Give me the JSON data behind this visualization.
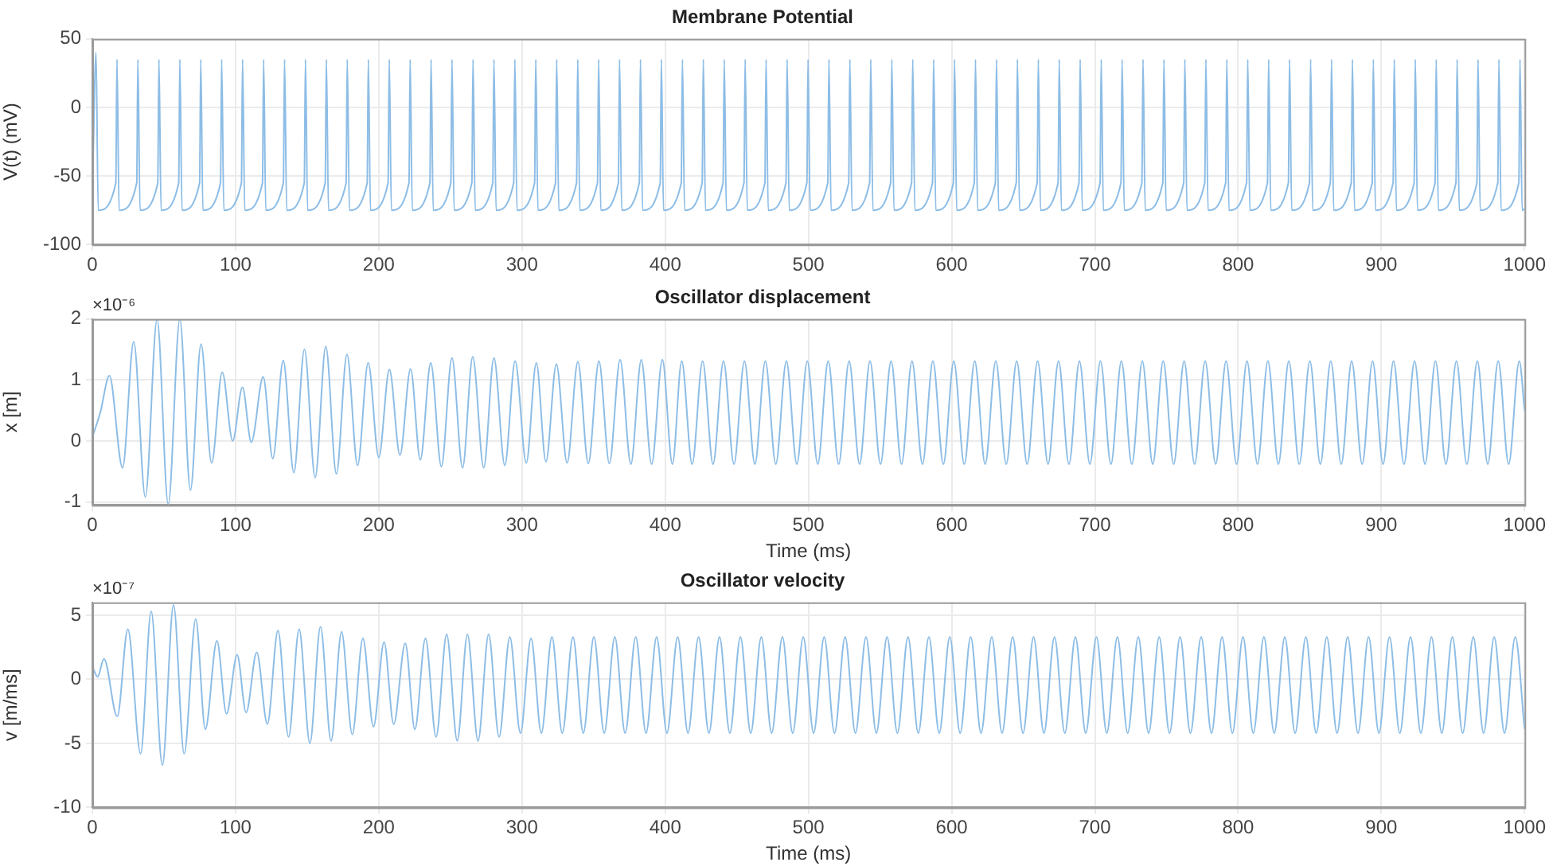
{
  "chart_data": [
    {
      "type": "line",
      "title": "Membrane Potential",
      "ylabel": "V(t) (mV)",
      "xlim": [
        0,
        1000
      ],
      "xticks": [
        0,
        100,
        200,
        300,
        400,
        500,
        600,
        700,
        800,
        900,
        1000
      ],
      "ylim": [
        -100,
        50
      ],
      "yticks": [
        -100,
        -50,
        0,
        50
      ],
      "grid": true,
      "series": [
        {
          "color": "#8dbde6",
          "x": [
            0,
            2.6,
            4.1,
            16.4,
            17.2,
            18.7,
            31.0,
            31.8,
            33.3,
            45.7,
            46.5,
            48.0,
            60.3,
            61.1,
            62.6,
            74.9,
            75.7,
            77.2,
            89.5,
            90.3,
            91.8,
            104.1,
            104.9,
            106.4,
            118.8,
            119.6,
            121.1,
            133.4,
            134.2,
            135.7,
            148.0,
            148.8,
            150.3,
            162.6,
            163.4,
            164.9,
            177.2,
            178.0,
            179.5,
            191.9,
            192.7,
            194.2,
            206.5,
            207.3,
            208.8,
            221.1,
            221.9,
            223.4,
            235.7,
            236.5,
            238.0,
            250.3,
            251.1,
            252.6,
            265.0,
            265.8,
            267.3,
            279.6,
            280.4,
            281.9,
            294.2,
            295.0,
            296.5,
            308.8,
            309.6,
            311.1,
            323.4,
            324.2,
            325.7,
            338.1,
            338.9,
            340.4,
            352.7,
            353.5,
            355.0,
            367.3,
            368.1,
            369.6,
            381.9,
            382.7,
            384.2,
            396.5,
            397.3,
            398.8,
            411.2,
            412.0,
            413.5,
            425.8,
            426.6,
            428.1,
            440.4,
            441.2,
            442.7,
            455.0,
            455.8,
            457.3,
            469.6,
            470.4,
            471.9,
            484.3,
            485.1,
            486.6,
            498.9,
            499.7,
            501.2,
            513.5,
            514.3,
            515.8,
            528.1,
            528.9,
            530.4,
            542.7,
            543.5,
            545.0,
            557.4,
            558.2,
            559.7,
            572.0,
            572.8,
            574.3,
            586.6,
            587.4,
            588.9,
            601.2,
            602.0,
            603.5,
            615.8,
            616.6,
            618.1,
            630.5,
            631.3,
            632.8,
            645.1,
            645.9,
            647.4,
            659.7,
            660.5,
            662.0,
            674.3,
            675.1,
            676.6,
            688.9,
            689.7,
            691.2,
            703.6,
            704.4,
            705.9,
            718.2,
            719.0,
            720.5,
            732.8,
            733.6,
            735.1,
            747.4,
            748.2,
            749.7,
            762.0,
            762.8,
            764.3,
            776.7,
            777.5,
            779.0,
            791.3,
            792.1,
            793.6,
            805.9,
            806.7,
            808.2,
            820.5,
            821.3,
            822.8,
            835.1,
            835.9,
            837.4,
            849.8,
            850.6,
            852.1,
            864.4,
            865.2,
            866.7,
            879.0,
            879.8,
            881.3,
            893.6,
            894.4,
            895.9,
            908.2,
            909.0,
            910.5,
            922.9,
            923.7,
            925.2,
            937.5,
            938.3,
            939.8,
            952.1,
            952.9,
            954.4,
            966.7,
            967.5,
            969.0,
            981.3,
            982.1,
            983.6,
            996.0,
            996.8,
            998.3,
            1000
          ],
          "values": [
            -65,
            40,
            -75,
            -55,
            35,
            -75,
            -55,
            35,
            -75,
            -55,
            35,
            -75,
            -55,
            35,
            -75,
            -55,
            35,
            -75,
            -55,
            35,
            -75,
            -55,
            35,
            -75,
            -55,
            35,
            -75,
            -55,
            35,
            -75,
            -55,
            35,
            -75,
            -55,
            35,
            -75,
            -55,
            35,
            -75,
            -55,
            35,
            -75,
            -55,
            35,
            -75,
            -55,
            35,
            -75,
            -55,
            35,
            -75,
            -55,
            35,
            -75,
            -55,
            35,
            -75,
            -55,
            35,
            -75,
            -55,
            35,
            -75,
            -55,
            35,
            -75,
            -55,
            35,
            -75,
            -55,
            35,
            -75,
            -55,
            35,
            -75,
            -55,
            35,
            -75,
            -55,
            35,
            -75,
            -55,
            35,
            -75,
            -55,
            35,
            -75,
            -55,
            35,
            -75,
            -55,
            35,
            -75,
            -55,
            35,
            -75,
            -55,
            35,
            -75,
            -55,
            35,
            -75,
            -55,
            35,
            -75,
            -55,
            35,
            -75,
            -55,
            35,
            -75,
            -55,
            35,
            -75,
            -55,
            35,
            -75,
            -55,
            35,
            -75,
            -55,
            35,
            -75,
            -55,
            35,
            -75,
            -55,
            35,
            -75,
            -55,
            35,
            -75,
            -55,
            35,
            -75,
            -55,
            35,
            -75,
            -55,
            35,
            -75,
            -55,
            35,
            -75,
            -55,
            35,
            -75,
            -55,
            35,
            -75,
            -55,
            35,
            -75,
            -55,
            35,
            -75,
            -55,
            35,
            -75,
            -55,
            35,
            -75,
            -55,
            35,
            -75,
            -55,
            35,
            -75,
            -55,
            35,
            -75,
            -55,
            35,
            -75,
            -55,
            35,
            -75,
            -55,
            35,
            -75,
            -55,
            35,
            -75,
            -55,
            35,
            -75,
            -55,
            35,
            -75,
            -55,
            35,
            -75,
            -55,
            35,
            -75,
            -55,
            35,
            -75,
            -55,
            35,
            -75,
            -55,
            35,
            -75,
            -55,
            35,
            -75,
            -74
          ]
        }
      ]
    },
    {
      "type": "line",
      "title": "Oscillator displacement",
      "xlabel": "Time (ms)",
      "ylabel": "x [m]",
      "annotations": [
        "×10⁻⁶"
      ],
      "xlim": [
        0,
        1000
      ],
      "xticks": [
        0,
        100,
        200,
        300,
        400,
        500,
        600,
        700,
        800,
        900,
        1000
      ],
      "ylim": [
        -1.05,
        2
      ],
      "yticks": [
        -1,
        0,
        1,
        2
      ],
      "grid": true,
      "series": [
        {
          "color": "#8dbde6",
          "x": [
            0,
            5.6,
            11.9,
            21.1,
            28.9,
            37,
            45.2,
            53,
            61.1,
            68.5,
            75.9,
            83.3,
            90.7,
            98,
            104.8,
            111,
            119.3,
            126,
            133.3,
            140.7,
            148.1,
            155.6,
            163,
            170.4,
            177.8,
            185.2,
            192.6,
            200,
            207.4,
            214.8,
            222.2,
            229,
            236.3,
            243.7,
            251.1,
            258.5,
            265.6,
            273.3,
            280.4,
            288,
            295.2,
            303,
            310,
            316.7,
            324,
            331.5,
            339,
            346.3,
            353.7,
            361,
            368.5,
            376,
            383.3,
            390.5,
            398,
            405,
            411.5,
            418.8,
            426.1,
            433.4,
            440.7,
            448.0,
            455.3,
            462.6,
            469.9,
            477.2,
            484.6,
            491.9,
            499.2,
            506.5,
            513.8,
            521.1,
            528.4,
            535.7,
            543.0,
            550.3,
            557.7,
            565.0,
            572.3,
            579.6,
            586.9,
            594.2,
            601.5,
            608.8,
            616.1,
            623.4,
            630.8,
            638.1,
            645.4,
            652.7,
            660.0,
            667.3,
            674.6,
            681.9,
            689.2,
            696.5,
            703.9,
            711.2,
            718.5,
            725.8,
            733.1,
            740.4,
            747.7,
            755.0,
            762.3,
            769.6,
            777.0,
            784.3,
            791.6,
            798.9,
            806.2,
            813.5,
            820.8,
            828.1,
            835.4,
            842.7,
            850.1,
            857.4,
            864.7,
            872.0,
            879.3,
            886.6,
            893.9,
            901.2,
            908.5,
            915.8,
            923.2,
            930.5,
            937.8,
            945.1,
            952.4,
            959.7,
            967.0,
            974.3,
            981.6,
            988.9,
            996.3,
            1000
          ],
          "values": [
            0.06,
            0.47,
            1.07,
            -0.44,
            1.63,
            -0.92,
            2.0,
            -1.04,
            2.0,
            -0.81,
            1.59,
            -0.36,
            1.13,
            0.0,
            0.88,
            -0.02,
            1.05,
            -0.29,
            1.32,
            -0.52,
            1.5,
            -0.6,
            1.55,
            -0.54,
            1.42,
            -0.4,
            1.28,
            -0.27,
            1.17,
            -0.23,
            1.18,
            -0.31,
            1.28,
            -0.42,
            1.36,
            -0.44,
            1.38,
            -0.44,
            1.36,
            -0.4,
            1.31,
            -0.36,
            1.28,
            -0.34,
            1.26,
            -0.36,
            1.3,
            -0.37,
            1.31,
            -0.37,
            1.33,
            -0.38,
            1.33,
            -0.38,
            1.33,
            -0.38,
            1.31,
            -0.38,
            1.31,
            -0.38,
            1.31,
            -0.38,
            1.31,
            -0.38,
            1.31,
            -0.38,
            1.31,
            -0.38,
            1.31,
            -0.38,
            1.31,
            -0.38,
            1.31,
            -0.38,
            1.31,
            -0.38,
            1.31,
            -0.38,
            1.31,
            -0.38,
            1.31,
            -0.38,
            1.31,
            -0.38,
            1.31,
            -0.38,
            1.31,
            -0.38,
            1.31,
            -0.38,
            1.31,
            -0.38,
            1.31,
            -0.38,
            1.31,
            -0.38,
            1.31,
            -0.38,
            1.31,
            -0.38,
            1.31,
            -0.38,
            1.31,
            -0.38,
            1.31,
            -0.38,
            1.31,
            -0.38,
            1.31,
            -0.38,
            1.31,
            -0.38,
            1.31,
            -0.38,
            1.31,
            -0.38,
            1.31,
            -0.38,
            1.31,
            -0.38,
            1.31,
            -0.38,
            1.31,
            -0.38,
            1.31,
            -0.38,
            1.31,
            -0.38,
            1.31,
            -0.38,
            1.31,
            -0.38,
            1.31,
            -0.38,
            1.31,
            -0.38,
            1.31,
            0.5
          ]
        }
      ]
    },
    {
      "type": "line",
      "title": "Oscillator velocity",
      "xlabel": "Time (ms)",
      "ylabel": "v [m/ms]",
      "annotations": [
        "×10⁻⁷"
      ],
      "xlim": [
        0,
        1000
      ],
      "xticks": [
        0,
        100,
        200,
        300,
        400,
        500,
        600,
        700,
        800,
        900,
        1000
      ],
      "ylim": [
        -10,
        6
      ],
      "yticks": [
        -10,
        -5,
        0,
        5
      ],
      "grid": true,
      "series": [
        {
          "color": "#8dbde6",
          "x": [
            0,
            3.7,
            8.1,
            17.4,
            24.8,
            33.7,
            41.1,
            48.9,
            56.7,
            64.1,
            72.2,
            78.9,
            87,
            93.7,
            101.1,
            107.4,
            114.8,
            122.2,
            129.6,
            137,
            144.4,
            151.9,
            159.3,
            166.7,
            174,
            181.5,
            188.9,
            196.3,
            203.7,
            210.4,
            218.5,
            225.2,
            232.6,
            240,
            247.4,
            254.8,
            261.9,
            269.3,
            276.7,
            284,
            291.5,
            298.9,
            306.3,
            313.5,
            320.9,
            328.1,
            335.6,
            342.8,
            350.2,
            357.4,
            364.8,
            372.0,
            379.4,
            386.6,
            394.0,
            401.2,
            408.7,
            415.9,
            423.3,
            430.5,
            437.9,
            445.1,
            452.5,
            459.7,
            467.1,
            474.3,
            481.8,
            489.0,
            496.4,
            503.6,
            511.0,
            518.2,
            525.6,
            532.8,
            540.2,
            547.4,
            554.9,
            562.1,
            569.5,
            576.7,
            584.1,
            591.3,
            598.7,
            605.9,
            613.3,
            620.5,
            628.0,
            635.2,
            642.6,
            649.8,
            657.2,
            664.4,
            671.8,
            679.0,
            686.4,
            693.6,
            701.1,
            708.3,
            715.7,
            722.9,
            730.3,
            737.5,
            744.9,
            752.1,
            759.5,
            766.7,
            774.2,
            781.4,
            788.8,
            796.0,
            803.4,
            810.6,
            818.0,
            825.2,
            832.6,
            839.8,
            847.3,
            854.5,
            861.9,
            869.1,
            876.5,
            883.7,
            891.1,
            898.3,
            905.7,
            912.9,
            920.4,
            927.6,
            935.0,
            942.2,
            949.6,
            956.8,
            964.2,
            971.4,
            978.8,
            986.0,
            993.5,
            1000
          ],
          "values": [
            1,
            0.2,
            1.6,
            -2.9,
            3.9,
            -5.8,
            5.3,
            -6.7,
            5.8,
            -5.8,
            4.7,
            -3.9,
            3.0,
            -2.7,
            1.9,
            -2.6,
            2.1,
            -3.5,
            3.8,
            -4.5,
            3.9,
            -5.0,
            4.1,
            -4.8,
            3.7,
            -4.3,
            3.2,
            -3.7,
            2.9,
            -3.5,
            2.8,
            -3.9,
            3.2,
            -4.5,
            3.5,
            -4.8,
            3.5,
            -4.8,
            3.5,
            -4.5,
            3.3,
            -4.2,
            3.2,
            -4.2,
            3.3,
            -4.2,
            3.3,
            -4.2,
            3.3,
            -4.2,
            3.3,
            -4.2,
            3.3,
            -4.2,
            3.3,
            -4.2,
            3.3,
            -4.2,
            3.3,
            -4.2,
            3.3,
            -4.2,
            3.3,
            -4.2,
            3.3,
            -4.2,
            3.3,
            -4.2,
            3.3,
            -4.2,
            3.3,
            -4.2,
            3.3,
            -4.2,
            3.3,
            -4.2,
            3.3,
            -4.2,
            3.3,
            -4.2,
            3.3,
            -4.2,
            3.3,
            -4.2,
            3.3,
            -4.2,
            3.3,
            -4.2,
            3.3,
            -4.2,
            3.3,
            -4.2,
            3.3,
            -4.2,
            3.3,
            -4.2,
            3.3,
            -4.2,
            3.3,
            -4.2,
            3.3,
            -4.2,
            3.3,
            -4.2,
            3.3,
            -4.2,
            3.3,
            -4.2,
            3.3,
            -4.2,
            3.3,
            -4.2,
            3.3,
            -4.2,
            3.3,
            -4.2,
            3.3,
            -4.2,
            3.3,
            -4.2,
            3.3,
            -4.2,
            3.3,
            -4.2,
            3.3,
            -4.2,
            3.3,
            -4.2,
            3.3,
            -4.2,
            3.3,
            -4.2,
            3.3,
            -4.2,
            3.3,
            -4.2,
            3.3,
            -3.9
          ]
        }
      ]
    }
  ]
}
